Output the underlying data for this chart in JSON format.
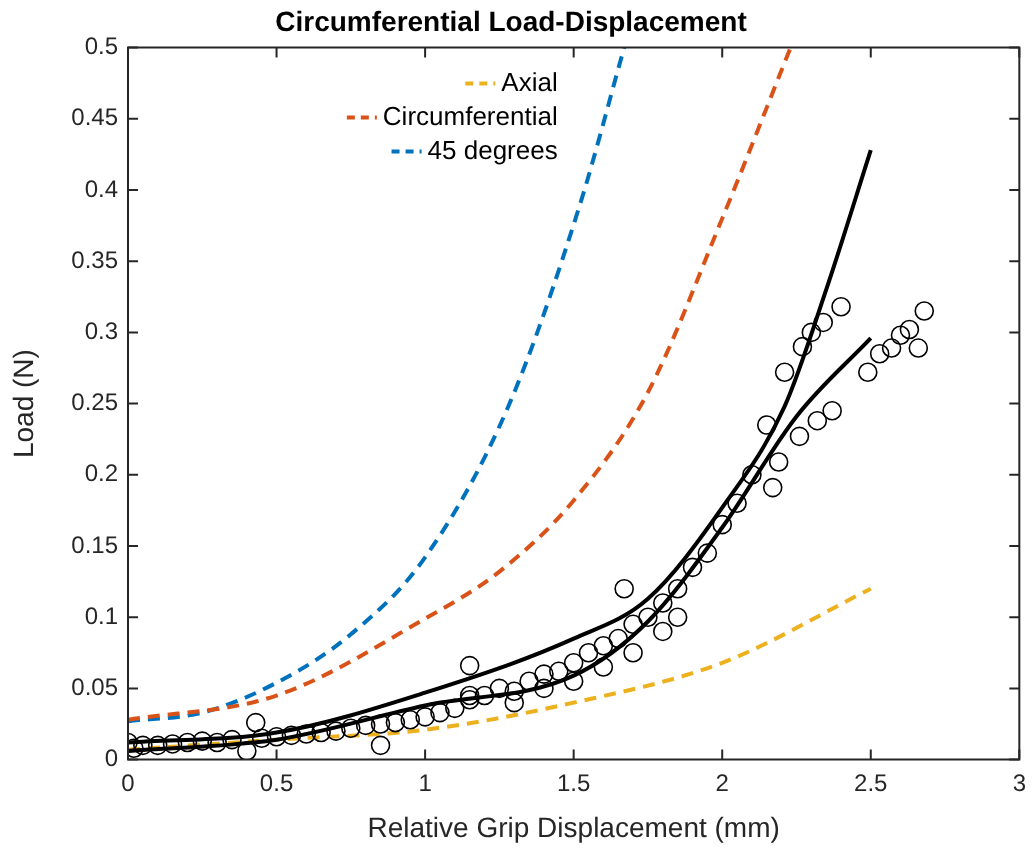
{
  "chart_data": {
    "type": "line",
    "title": "Circumferential Load-Displacement",
    "xlabel": "Relative Grip Displacement (mm)",
    "ylabel": "Load (N)",
    "xlim": [
      0,
      3
    ],
    "xticks": [
      0,
      0.5,
      1,
      1.5,
      2,
      2.5,
      3
    ],
    "ylim": [
      0,
      0.5
    ],
    "yticks": [
      0,
      0.05,
      0.1,
      0.15,
      0.2,
      0.25,
      0.3,
      0.35,
      0.4,
      0.45,
      0.5
    ],
    "grid": false,
    "legend": "top",
    "series": [
      {
        "type": "scatter",
        "color": "#000000",
        "marker": "circle",
        "x": [
          0,
          0.02,
          0.05,
          0.1,
          0.15,
          0.2,
          0.25,
          0.3,
          0.35,
          0.4,
          0.43,
          0.45,
          0.5,
          0.55,
          0.6,
          0.65,
          0.7,
          0.75,
          0.8,
          0.85,
          0.85,
          0.9,
          0.95,
          1.0,
          1.05,
          1.1,
          1.15,
          1.15,
          1.15,
          1.2,
          1.25,
          1.3,
          1.3,
          1.35,
          1.4,
          1.4,
          1.45,
          1.5,
          1.5,
          1.55,
          1.6,
          1.6,
          1.65,
          1.67,
          1.7,
          1.7,
          1.75,
          1.8,
          1.8,
          1.85,
          1.85,
          1.9,
          1.95,
          2.0,
          2.05,
          2.1,
          2.15,
          2.17,
          2.19,
          2.21,
          2.26,
          2.27,
          2.3,
          2.32,
          2.34,
          2.37,
          2.4,
          2.49,
          2.53,
          2.57,
          2.6,
          2.63,
          2.66,
          2.68
        ],
        "values": [
          0.012,
          0.008,
          0.01,
          0.01,
          0.011,
          0.012,
          0.013,
          0.012,
          0.014,
          0.006,
          0.026,
          0.015,
          0.016,
          0.017,
          0.018,
          0.019,
          0.02,
          0.022,
          0.024,
          0.025,
          0.01,
          0.026,
          0.028,
          0.03,
          0.033,
          0.036,
          0.042,
          0.045,
          0.066,
          0.045,
          0.05,
          0.048,
          0.04,
          0.055,
          0.06,
          0.05,
          0.062,
          0.068,
          0.055,
          0.075,
          0.08,
          0.065,
          0.085,
          0.12,
          0.095,
          0.075,
          0.1,
          0.11,
          0.09,
          0.12,
          0.1,
          0.135,
          0.145,
          0.165,
          0.18,
          0.2,
          0.235,
          0.191,
          0.209,
          0.272,
          0.227,
          0.29,
          0.3,
          0.238,
          0.307,
          0.245,
          0.318,
          0.272,
          0.285,
          0.289,
          0.298,
          0.302,
          0.289,
          0.315
        ]
      },
      {
        "color": "#000000",
        "marker": "none",
        "line_style": "solid",
        "x": [
          0,
          0.5,
          1,
          1.5,
          1.75,
          2,
          2.21,
          2.35,
          2.5
        ],
        "values": [
          0.012,
          0.019,
          0.047,
          0.085,
          0.113,
          0.177,
          0.248,
          0.33,
          0.428
        ]
      },
      {
        "color": "#000000",
        "marker": "none",
        "line_style": "solid",
        "x": [
          0,
          0.5,
          1,
          1.5,
          1.75,
          2,
          2.25,
          2.5
        ],
        "values": [
          0.006,
          0.014,
          0.038,
          0.059,
          0.097,
          0.163,
          0.241,
          0.296
        ]
      },
      {
        "name": "Axial",
        "color": "#edb120",
        "marker": "none",
        "line_style": "dashed",
        "x": [
          0,
          0.5,
          1,
          1.5,
          2,
          2.5
        ],
        "values": [
          0.007,
          0.014,
          0.021,
          0.04,
          0.068,
          0.12
        ]
      },
      {
        "name": "Circumferential",
        "color": "#d95319",
        "marker": "none",
        "line_style": "dashed",
        "x": [
          0,
          0.5,
          1,
          1.25,
          1.5,
          1.75,
          2,
          2.23
        ],
        "values": [
          0.028,
          0.045,
          0.099,
          0.132,
          0.182,
          0.258,
          0.38,
          0.5
        ]
      },
      {
        "name": "45 degrees",
        "color": "#0072bd",
        "marker": "none",
        "line_style": "dashed",
        "x": [
          0,
          0.25,
          0.5,
          0.75,
          1,
          1.28,
          1.52,
          1.67
        ],
        "values": [
          0.027,
          0.033,
          0.054,
          0.088,
          0.142,
          0.248,
          0.389,
          0.5
        ]
      }
    ]
  }
}
